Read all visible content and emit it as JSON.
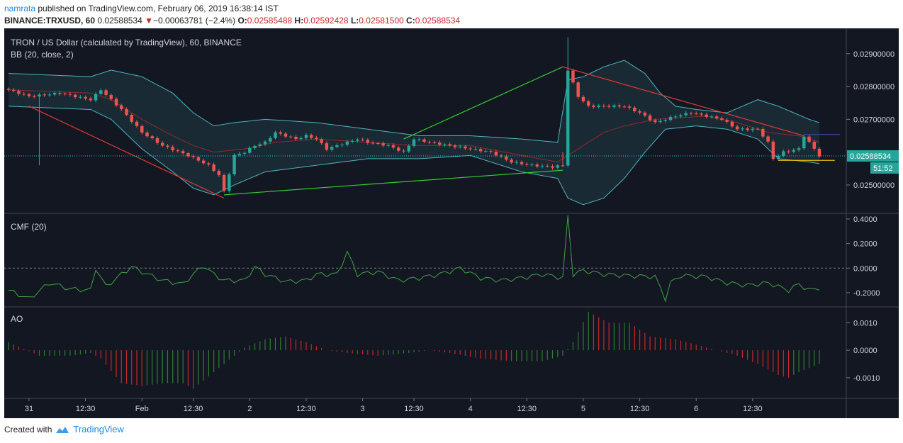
{
  "header": {
    "user": "namrata",
    "published_text": "published on TradingView.com, February 06, 2019 16:38:14 IST",
    "symbol": "BINANCE:TRXUSD, 60",
    "last": "0.02588534",
    "change_arrow": "▼",
    "change": "−0.00063781 (−2.4%)",
    "o_label": "O:",
    "o_value": "0.02585488",
    "h_label": "H:",
    "h_value": "0.02592428",
    "l_label": "L:",
    "l_value": "0.02581500",
    "c_label": "C:",
    "c_value": "0.02588534"
  },
  "footer": {
    "created_with": "Created with",
    "brand": "TradingView",
    "logo_icon": "tradingview-cloud-icon"
  },
  "colors": {
    "background": "#131722",
    "up": "#26a69a",
    "down": "#ef5350",
    "band": "#4fb3bf",
    "cmf": "#43a047",
    "ao_up": "#2e7d32",
    "ao_down": "#c62828",
    "trend_up": "#33cc33",
    "trend_down": "#e53935",
    "price_line": "#26c6da",
    "support": "#e6c300",
    "resistance": "#3949ab"
  },
  "chart_data": [
    {
      "type": "candlestick",
      "title": "TRON / US Dollar (calculated by TradingView), 60, BINANCE",
      "indicator": "BB (20, close, 2)",
      "x_tick_labels": [
        "31",
        "12:30",
        "Feb",
        "12:30",
        "2",
        "12:30",
        "3",
        "12:30",
        "4",
        "12:30",
        "5",
        "12:30",
        "6",
        "12:30"
      ],
      "y_tick_labels": [
        "0.02900000",
        "0.02800000",
        "0.02700000",
        "0.02500000"
      ],
      "ylim": [
        0.0242,
        0.0296
      ],
      "last_price": "0.02588534",
      "countdown": "51:52",
      "close_anchors": [
        [
          0,
          0.0279
        ],
        [
          4,
          0.0277
        ],
        [
          10,
          0.0278
        ],
        [
          16,
          0.0276
        ],
        [
          18,
          0.0279
        ],
        [
          22,
          0.0273
        ],
        [
          26,
          0.0266
        ],
        [
          30,
          0.0262
        ],
        [
          35,
          0.0259
        ],
        [
          39,
          0.0256
        ],
        [
          41,
          0.0253
        ],
        [
          42,
          0.0248
        ],
        [
          44,
          0.0259
        ],
        [
          46,
          0.026
        ],
        [
          48,
          0.0262
        ],
        [
          50,
          0.0263
        ],
        [
          52,
          0.0266
        ],
        [
          56,
          0.0264
        ],
        [
          58,
          0.0265
        ],
        [
          60,
          0.0264
        ],
        [
          62,
          0.0261
        ],
        [
          66,
          0.0263
        ],
        [
          68,
          0.0264
        ],
        [
          70,
          0.0263
        ],
        [
          74,
          0.0262
        ],
        [
          77,
          0.026
        ],
        [
          79,
          0.0264
        ],
        [
          82,
          0.0263
        ],
        [
          86,
          0.0262
        ],
        [
          90,
          0.0261
        ],
        [
          94,
          0.026
        ],
        [
          98,
          0.0257
        ],
        [
          102,
          0.0256
        ],
        [
          106,
          0.02555
        ],
        [
          108,
          0.0256
        ],
        [
          109,
          0.0285
        ],
        [
          111,
          0.0277
        ],
        [
          113,
          0.0274
        ],
        [
          117,
          0.0274
        ],
        [
          120,
          0.0274
        ],
        [
          123,
          0.0272
        ],
        [
          126,
          0.0269
        ],
        [
          130,
          0.0271
        ],
        [
          133,
          0.0272
        ],
        [
          136,
          0.0271
        ],
        [
          139,
          0.027
        ],
        [
          142,
          0.0267
        ],
        [
          146,
          0.0267
        ],
        [
          148,
          0.0263
        ],
        [
          149,
          0.0258
        ],
        [
          151,
          0.026
        ],
        [
          154,
          0.0261
        ],
        [
          155,
          0.0265
        ],
        [
          157,
          0.0261
        ],
        [
          158,
          0.02589
        ]
      ],
      "bollinger_upper_anchors": [
        [
          0,
          0.0284
        ],
        [
          16,
          0.0283
        ],
        [
          20,
          0.0285
        ],
        [
          26,
          0.0283
        ],
        [
          32,
          0.0278
        ],
        [
          36,
          0.0272
        ],
        [
          40,
          0.0268
        ],
        [
          44,
          0.0269
        ],
        [
          50,
          0.027
        ],
        [
          60,
          0.0269
        ],
        [
          70,
          0.0267
        ],
        [
          80,
          0.0265
        ],
        [
          90,
          0.0265
        ],
        [
          100,
          0.0264
        ],
        [
          107,
          0.0263
        ],
        [
          109,
          0.0282
        ],
        [
          112,
          0.0283
        ],
        [
          116,
          0.0286
        ],
        [
          120,
          0.0288
        ],
        [
          124,
          0.0284
        ],
        [
          127,
          0.0278
        ],
        [
          130,
          0.0274
        ],
        [
          134,
          0.0273
        ],
        [
          140,
          0.0272
        ],
        [
          146,
          0.0276
        ],
        [
          150,
          0.0274
        ],
        [
          156,
          0.027
        ],
        [
          158,
          0.0269
        ]
      ],
      "bollinger_middle_anchors": [
        [
          0,
          0.0279
        ],
        [
          16,
          0.0278
        ],
        [
          20,
          0.0276
        ],
        [
          26,
          0.027
        ],
        [
          32,
          0.0265
        ],
        [
          36,
          0.0262
        ],
        [
          40,
          0.026
        ],
        [
          46,
          0.0261
        ],
        [
          52,
          0.0263
        ],
        [
          60,
          0.0264
        ],
        [
          70,
          0.0263
        ],
        [
          80,
          0.0262
        ],
        [
          90,
          0.0262
        ],
        [
          100,
          0.0259
        ],
        [
          107,
          0.0257
        ],
        [
          110,
          0.026
        ],
        [
          116,
          0.0266
        ],
        [
          120,
          0.0268
        ],
        [
          126,
          0.027
        ],
        [
          136,
          0.0271
        ],
        [
          142,
          0.0269
        ],
        [
          148,
          0.0266
        ],
        [
          154,
          0.0265
        ],
        [
          158,
          0.0263
        ]
      ],
      "bollinger_lower_anchors": [
        [
          0,
          0.0274
        ],
        [
          16,
          0.0273
        ],
        [
          20,
          0.027
        ],
        [
          26,
          0.0261
        ],
        [
          32,
          0.0254
        ],
        [
          36,
          0.0249
        ],
        [
          40,
          0.0247
        ],
        [
          44,
          0.025
        ],
        [
          50,
          0.0254
        ],
        [
          60,
          0.0256
        ],
        [
          70,
          0.0258
        ],
        [
          80,
          0.0258
        ],
        [
          90,
          0.0259
        ],
        [
          100,
          0.0254
        ],
        [
          107,
          0.0252
        ],
        [
          109,
          0.0246
        ],
        [
          112,
          0.0244
        ],
        [
          116,
          0.0246
        ],
        [
          120,
          0.0252
        ],
        [
          124,
          0.026
        ],
        [
          128,
          0.0267
        ],
        [
          134,
          0.0268
        ],
        [
          140,
          0.0267
        ],
        [
          146,
          0.0264
        ],
        [
          150,
          0.0258
        ],
        [
          156,
          0.0257
        ],
        [
          158,
          0.02565
        ]
      ],
      "trendlines": [
        {
          "kind": "down",
          "from": [
            4,
            0.0274
          ],
          "to": [
            42,
            0.0246
          ]
        },
        {
          "kind": "up",
          "from": [
            42,
            0.0247
          ],
          "to": [
            108,
            0.02545
          ]
        },
        {
          "kind": "up",
          "from": [
            77,
            0.0264
          ],
          "to": [
            108,
            0.0286
          ]
        },
        {
          "kind": "down",
          "from": [
            108,
            0.0286
          ],
          "to": [
            155,
            0.0265
          ]
        },
        {
          "kind": "support",
          "from": [
            150,
            0.02575
          ],
          "to": [
            161,
            0.02575
          ]
        },
        {
          "kind": "resistance",
          "from": [
            155,
            0.02654
          ],
          "to": [
            162,
            0.02654
          ]
        }
      ]
    },
    {
      "type": "line",
      "title": "CMF (20)",
      "y_tick_labels": [
        "0.4000",
        "0.2000",
        "0.0000",
        "-0.2000"
      ],
      "ylim": [
        -0.31,
        0.44
      ],
      "anchors": [
        [
          0,
          -0.18
        ],
        [
          4,
          -0.25
        ],
        [
          8,
          -0.12
        ],
        [
          12,
          -0.17
        ],
        [
          16,
          -0.18
        ],
        [
          17,
          0.0
        ],
        [
          19,
          -0.15
        ],
        [
          22,
          -0.05
        ],
        [
          24,
          0.01
        ],
        [
          26,
          -0.03
        ],
        [
          30,
          -0.1
        ],
        [
          34,
          -0.13
        ],
        [
          36,
          -0.05
        ],
        [
          38,
          0.02
        ],
        [
          40,
          -0.05
        ],
        [
          42,
          -0.1
        ],
        [
          46,
          -0.1
        ],
        [
          48,
          0.01
        ],
        [
          50,
          -0.05
        ],
        [
          54,
          -0.11
        ],
        [
          58,
          -0.1
        ],
        [
          60,
          -0.05
        ],
        [
          64,
          -0.05
        ],
        [
          66,
          0.13
        ],
        [
          68,
          -0.05
        ],
        [
          72,
          -0.03
        ],
        [
          76,
          -0.1
        ],
        [
          80,
          -0.08
        ],
        [
          84,
          -0.05
        ],
        [
          88,
          0.0
        ],
        [
          92,
          -0.08
        ],
        [
          96,
          -0.1
        ],
        [
          100,
          -0.08
        ],
        [
          104,
          -0.05
        ],
        [
          108,
          -0.08
        ],
        [
          109,
          0.42
        ],
        [
          110,
          -0.05
        ],
        [
          112,
          -0.02
        ],
        [
          116,
          -0.05
        ],
        [
          120,
          -0.06
        ],
        [
          126,
          -0.07
        ],
        [
          128,
          -0.25
        ],
        [
          129,
          -0.12
        ],
        [
          131,
          -0.06
        ],
        [
          136,
          -0.07
        ],
        [
          140,
          -0.12
        ],
        [
          144,
          -0.14
        ],
        [
          148,
          -0.12
        ],
        [
          152,
          -0.18
        ],
        [
          154,
          -0.13
        ],
        [
          156,
          -0.18
        ],
        [
          158,
          -0.16
        ]
      ]
    },
    {
      "type": "bar",
      "title": "AO",
      "y_tick_labels": [
        "0.0010",
        "0.0000",
        "-0.0010"
      ],
      "ylim": [
        -0.0017,
        0.0015
      ],
      "anchors": [
        [
          0,
          0.0003
        ],
        [
          6,
          -0.0002
        ],
        [
          12,
          -0.0002
        ],
        [
          16,
          -0.0001
        ],
        [
          18,
          -0.0003
        ],
        [
          22,
          -0.0012
        ],
        [
          26,
          -0.0013
        ],
        [
          30,
          -0.0012
        ],
        [
          34,
          -0.0012
        ],
        [
          36,
          -0.0014
        ],
        [
          38,
          -0.0011
        ],
        [
          42,
          -0.0005
        ],
        [
          46,
          0.0001
        ],
        [
          50,
          0.0004
        ],
        [
          54,
          0.0005
        ],
        [
          58,
          0.0003
        ],
        [
          62,
          0.0
        ],
        [
          66,
          -0.0001
        ],
        [
          72,
          -0.0002
        ],
        [
          78,
          -0.0001
        ],
        [
          82,
          0.0
        ],
        [
          86,
          -0.0001
        ],
        [
          92,
          -0.0003
        ],
        [
          98,
          -0.0004
        ],
        [
          104,
          -0.0004
        ],
        [
          108,
          -0.0002
        ],
        [
          110,
          0.0003
        ],
        [
          113,
          0.0014
        ],
        [
          117,
          0.001
        ],
        [
          121,
          0.001
        ],
        [
          125,
          0.0005
        ],
        [
          130,
          0.0004
        ],
        [
          134,
          0.0002
        ],
        [
          138,
          0.0
        ],
        [
          142,
          -0.0002
        ],
        [
          146,
          -0.0005
        ],
        [
          150,
          -0.0009
        ],
        [
          152,
          -0.001
        ],
        [
          154,
          -0.0008
        ],
        [
          158,
          -0.0005
        ]
      ]
    }
  ]
}
